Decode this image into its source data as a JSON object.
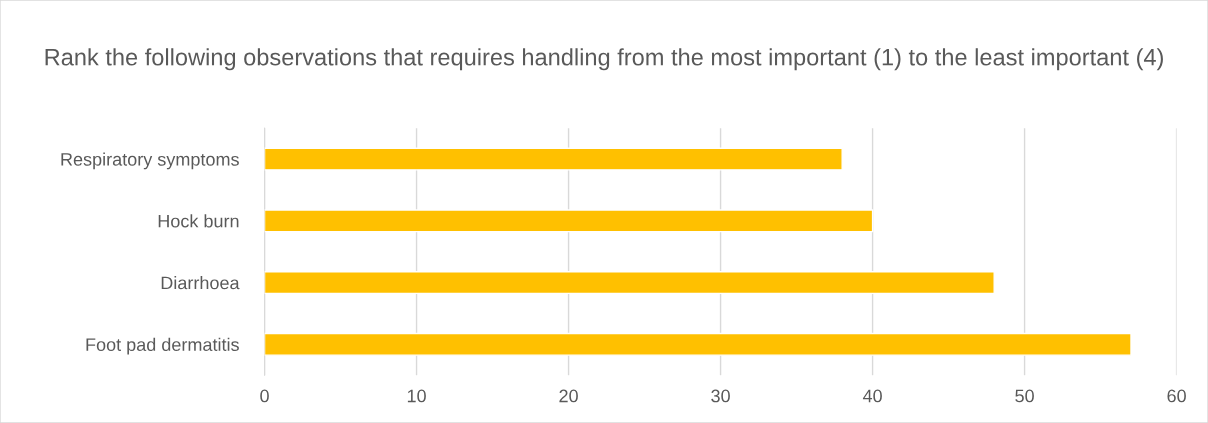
{
  "chart_data": {
    "type": "bar",
    "orientation": "horizontal",
    "title": "Rank the following observations that requires handling from the most important (1) to the least important (4)",
    "categories": [
      "Respiratory symptoms",
      "Hock burn",
      "Diarrhoea",
      "Foot pad dermatitis"
    ],
    "values": [
      38,
      40,
      48,
      57
    ],
    "color": "#ffc000",
    "xlim": [
      0,
      60
    ],
    "xticks": [
      0,
      10,
      20,
      30,
      40,
      50,
      60
    ],
    "grid": "x"
  }
}
